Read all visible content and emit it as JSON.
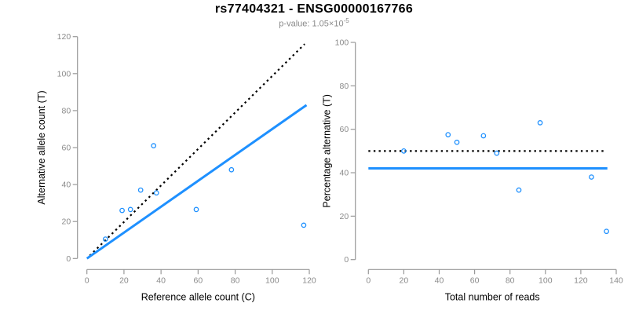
{
  "header": {
    "title": "rs77404321 - ENSG00000167766",
    "subtitle_text": "p-value: 1.05×10",
    "subtitle_exponent": "-5"
  },
  "colors": {
    "point_stroke": "#1E90FF",
    "trend_line": "#1E90FF",
    "reference_line": "#000000",
    "axis_line": "#999999",
    "tick_label": "#8a8a8a",
    "axis_title": "#000000",
    "title": "#000000",
    "subtitle": "#8a8a8a"
  },
  "chart_data": [
    {
      "type": "scatter",
      "panel": "allele-counts",
      "xlabel": "Reference allele count (C)",
      "ylabel": "Alternative allele count (T)",
      "xlim": [
        0,
        120
      ],
      "ylim": [
        0,
        120
      ],
      "xticks": [
        0,
        20,
        40,
        60,
        80,
        100,
        120
      ],
      "yticks": [
        0,
        20,
        40,
        60,
        80,
        100,
        120
      ],
      "grid": false,
      "legend": null,
      "points": [
        [
          10,
          10.5
        ],
        [
          19,
          26
        ],
        [
          23.5,
          26.5
        ],
        [
          29,
          37
        ],
        [
          36,
          61
        ],
        [
          37.5,
          35.5
        ],
        [
          59,
          26.5
        ],
        [
          78,
          48
        ],
        [
          117,
          18
        ]
      ],
      "lines": [
        {
          "name": "identity-line",
          "role": "reference",
          "style": "dotted",
          "x1": 1.5,
          "y1": 1.5,
          "x2": 117.5,
          "y2": 116
        },
        {
          "name": "regression-line",
          "role": "trend",
          "style": "solid",
          "x1": 0,
          "y1": 0,
          "x2": 118.5,
          "y2": 83
        }
      ]
    },
    {
      "type": "scatter",
      "panel": "percentage-vs-depth",
      "xlabel": "Total number of reads",
      "ylabel": "Percentage alternative (T)",
      "xlim": [
        0,
        140
      ],
      "ylim": [
        0,
        100
      ],
      "xticks": [
        0,
        20,
        40,
        60,
        80,
        100,
        120,
        140
      ],
      "yticks": [
        0,
        20,
        40,
        60,
        80,
        100
      ],
      "grid": false,
      "legend": null,
      "points": [
        [
          20,
          50
        ],
        [
          45,
          57.5
        ],
        [
          50,
          54
        ],
        [
          65,
          57
        ],
        [
          72.5,
          49
        ],
        [
          85,
          32
        ],
        [
          97,
          63
        ],
        [
          126,
          38
        ],
        [
          134.5,
          13
        ]
      ],
      "lines": [
        {
          "name": "fifty-percent-line",
          "role": "reference",
          "style": "dotted",
          "x1": 0,
          "y1": 50,
          "x2": 133,
          "y2": 50
        },
        {
          "name": "mean-percentage-line",
          "role": "trend",
          "style": "solid",
          "x1": 0,
          "y1": 42,
          "x2": 135,
          "y2": 42
        }
      ]
    }
  ]
}
